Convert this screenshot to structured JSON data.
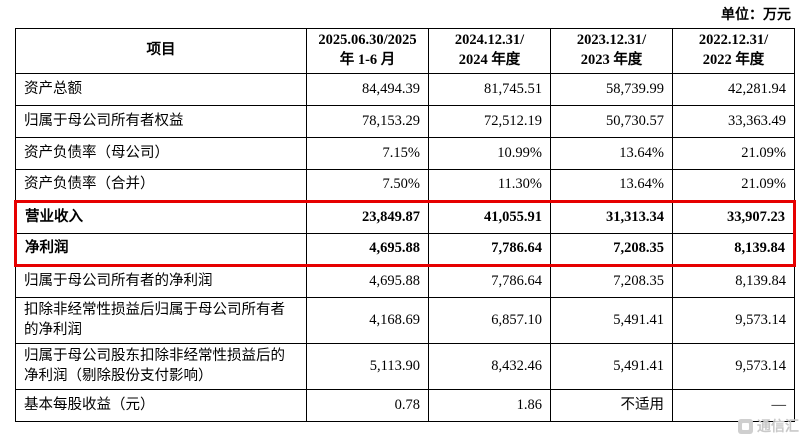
{
  "unit_label": "单位：万元",
  "highlight_color": "#e60000",
  "table": {
    "col_project_header": "项目",
    "headers": [
      {
        "line1": "2025.06.30/2025",
        "line2": "年 1-6 月"
      },
      {
        "line1": "2024.12.31/",
        "line2": "2024 年度"
      },
      {
        "line1": "2023.12.31/",
        "line2": "2023 年度"
      },
      {
        "line1": "2022.12.31/",
        "line2": "2022 年度"
      }
    ],
    "rows": [
      {
        "label": "资产总额",
        "v1": "84,494.39",
        "v2": "81,745.51",
        "v3": "58,739.99",
        "v4": "42,281.94"
      },
      {
        "label": "归属于母公司所有者权益",
        "v1": "78,153.29",
        "v2": "72,512.19",
        "v3": "50,730.57",
        "v4": "33,363.49"
      },
      {
        "label": "资产负债率（母公司）",
        "v1": "7.15%",
        "v2": "10.99%",
        "v3": "13.64%",
        "v4": "21.09%"
      },
      {
        "label": "资产负债率（合并）",
        "v1": "7.50%",
        "v2": "11.30%",
        "v3": "13.64%",
        "v4": "21.09%"
      },
      {
        "label": "营业收入",
        "v1": "23,849.87",
        "v2": "41,055.91",
        "v3": "31,313.34",
        "v4": "33,907.23"
      },
      {
        "label": "净利润",
        "v1": "4,695.88",
        "v2": "7,786.64",
        "v3": "7,208.35",
        "v4": "8,139.84"
      },
      {
        "label": "归属于母公司所有者的净利润",
        "v1": "4,695.88",
        "v2": "7,786.64",
        "v3": "7,208.35",
        "v4": "8,139.84"
      },
      {
        "label": "扣除非经常性损益后归属于母公司所有者的净利润",
        "v1": "4,168.69",
        "v2": "6,857.10",
        "v3": "5,491.41",
        "v4": "9,573.14"
      },
      {
        "label": "归属于母公司股东扣除非经常性损益后的净利润（剔除股份支付影响）",
        "v1": "5,113.90",
        "v2": "8,432.46",
        "v3": "5,491.41",
        "v4": "9,573.14"
      },
      {
        "label": "基本每股收益（元）",
        "v1": "0.78",
        "v2": "1.86",
        "v3": "不适用",
        "v4": "—"
      }
    ]
  },
  "watermark": {
    "text": "通信汇"
  }
}
